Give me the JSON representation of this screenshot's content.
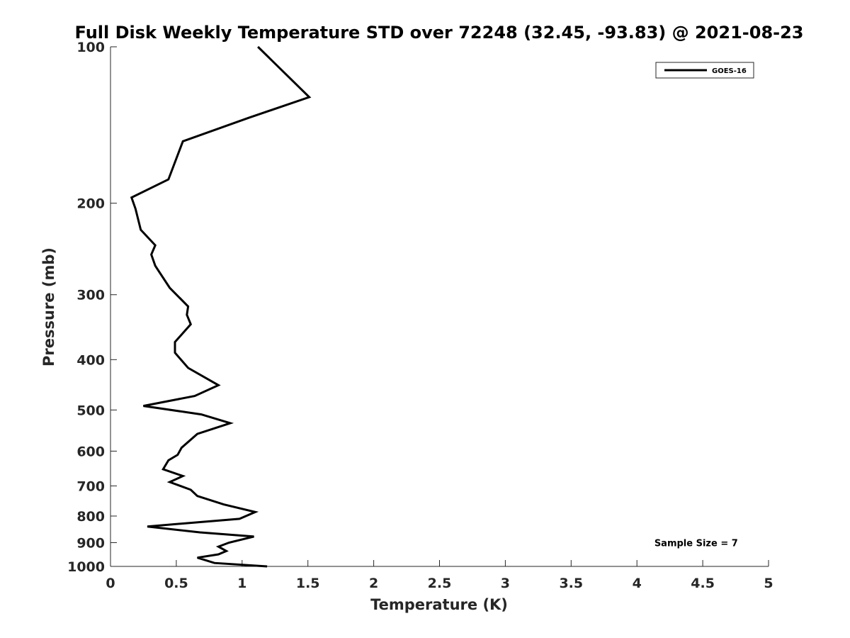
{
  "chart_data": {
    "type": "line",
    "title": "Full Disk Weekly Temperature STD over 72248 (32.45, -93.83) @ 2021-08-23",
    "xlabel": "Temperature (K)",
    "ylabel": "Pressure (mb)",
    "xlim": [
      0,
      5
    ],
    "ylim": [
      100,
      1000
    ],
    "y_scale": "log",
    "y_reversed": true,
    "grid": false,
    "legend_position": "top-right",
    "x_ticks": [
      0,
      0.5,
      1,
      1.5,
      2,
      2.5,
      3,
      3.5,
      4,
      4.5,
      5
    ],
    "x_tick_labels": [
      "0",
      "0.5",
      "1",
      "1.5",
      "2",
      "2.5",
      "3",
      "3.5",
      "4",
      "4.5",
      "5"
    ],
    "y_ticks": [
      100,
      200,
      300,
      400,
      500,
      600,
      700,
      800,
      900,
      1000
    ],
    "y_tick_labels": [
      "100",
      "200",
      "300",
      "400",
      "500",
      "600",
      "700",
      "800",
      "900",
      "1000"
    ],
    "series": [
      {
        "name": "GOES-16",
        "color": "#000000",
        "points": [
          [
            1.12,
            100
          ],
          [
            1.51,
            125
          ],
          [
            1.05,
            137
          ],
          [
            0.55,
            152
          ],
          [
            0.44,
            180
          ],
          [
            0.16,
            195
          ],
          [
            0.19,
            205
          ],
          [
            0.23,
            225
          ],
          [
            0.34,
            241
          ],
          [
            0.31,
            251
          ],
          [
            0.34,
            264
          ],
          [
            0.45,
            291
          ],
          [
            0.59,
            316
          ],
          [
            0.58,
            328
          ],
          [
            0.61,
            342
          ],
          [
            0.49,
            370
          ],
          [
            0.49,
            388
          ],
          [
            0.59,
            415
          ],
          [
            0.82,
            448
          ],
          [
            0.64,
            470
          ],
          [
            0.25,
            491
          ],
          [
            0.69,
            510
          ],
          [
            0.91,
            530
          ],
          [
            0.66,
            556
          ],
          [
            0.54,
            591
          ],
          [
            0.51,
            610
          ],
          [
            0.44,
            625
          ],
          [
            0.4,
            650
          ],
          [
            0.55,
            670
          ],
          [
            0.45,
            688
          ],
          [
            0.61,
            712
          ],
          [
            0.66,
            732
          ],
          [
            0.86,
            760
          ],
          [
            1.1,
            786
          ],
          [
            0.98,
            810
          ],
          [
            0.28,
            838
          ],
          [
            0.68,
            860
          ],
          [
            1.09,
            876
          ],
          [
            0.9,
            900
          ],
          [
            0.82,
            916
          ],
          [
            0.88,
            934
          ],
          [
            0.82,
            948
          ],
          [
            0.66,
            962
          ],
          [
            0.79,
            985
          ],
          [
            1.19,
            1000
          ]
        ]
      }
    ],
    "annotations": [
      {
        "text": "Sample Size = 7",
        "x": 4.45,
        "y": 900
      }
    ]
  }
}
